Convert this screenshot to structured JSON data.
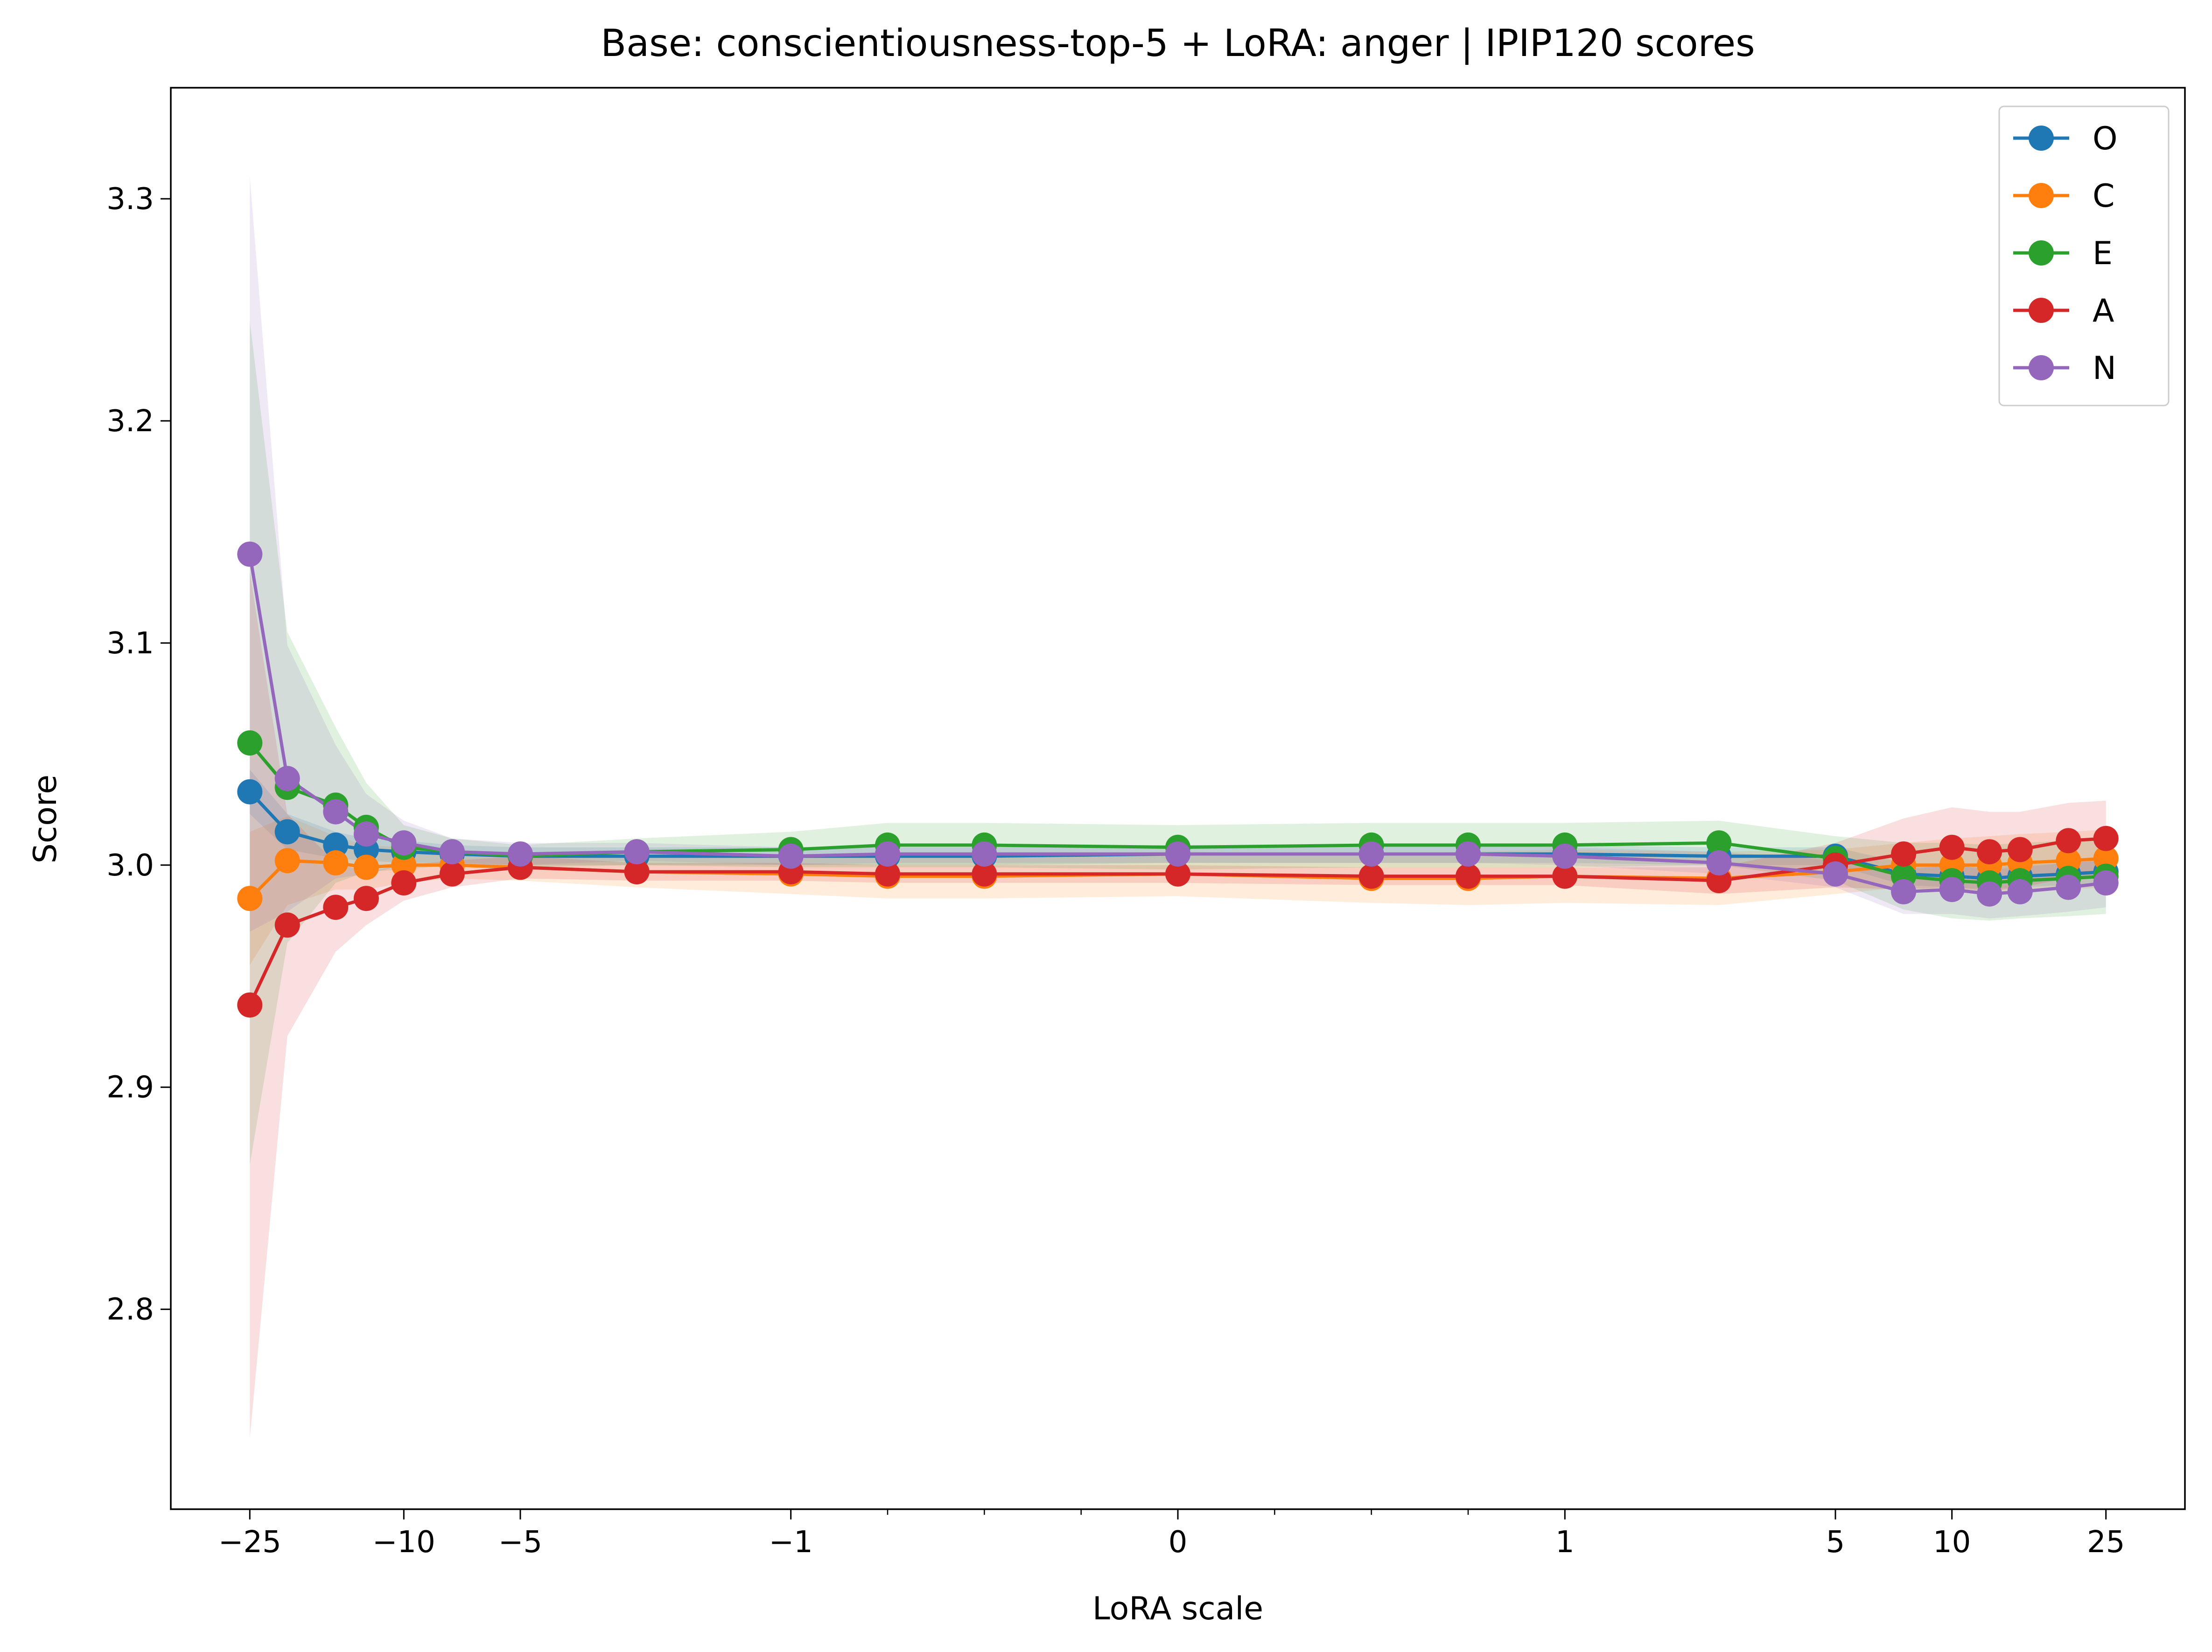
{
  "chart_data": {
    "type": "line",
    "title": "Base: conscientiousness-top-5 + LoRA: anger | IPIP120 scores",
    "xlabel": "LoRA scale",
    "ylabel": "Score",
    "x_scale": "symlog",
    "x_linthresh": 1,
    "xlim": [
      -40,
      40
    ],
    "ylim": [
      2.71,
      3.35
    ],
    "xticks": [
      {
        "value": -25,
        "label": "−25"
      },
      {
        "value": -10,
        "label": "−10"
      },
      {
        "value": -5,
        "label": "−5"
      },
      {
        "value": -1,
        "label": "−1"
      },
      {
        "value": 0,
        "label": "0"
      },
      {
        "value": 1,
        "label": "1"
      },
      {
        "value": 5,
        "label": "5"
      },
      {
        "value": 10,
        "label": "10"
      },
      {
        "value": 25,
        "label": "25"
      }
    ],
    "yticks": [
      {
        "value": 2.8,
        "label": "2.8"
      },
      {
        "value": 2.9,
        "label": "2.9"
      },
      {
        "value": 3.0,
        "label": "3.0"
      },
      {
        "value": 3.1,
        "label": "3.1"
      },
      {
        "value": 3.2,
        "label": "3.2"
      },
      {
        "value": 3.3,
        "label": "3.3"
      }
    ],
    "grid": false,
    "legend_position": "top-right",
    "x": [
      -25,
      -20,
      -15,
      -12.5,
      -10,
      -7.5,
      -5,
      -2.5,
      -1,
      -0.75,
      -0.5,
      0,
      0.5,
      0.75,
      1,
      2.5,
      5,
      7.5,
      10,
      12.5,
      15,
      20,
      25
    ],
    "series": [
      {
        "name": "O",
        "color": "#1f77b4",
        "values": [
          3.033,
          3.015,
          3.009,
          3.007,
          3.006,
          3.005,
          3.004,
          3.004,
          3.004,
          3.004,
          3.004,
          3.005,
          3.005,
          3.005,
          3.005,
          3.004,
          3.004,
          2.996,
          2.995,
          2.994,
          2.995,
          2.996,
          2.997
        ],
        "band": [
          0.01,
          0.008,
          0.006,
          0.005,
          0.005,
          0.004,
          0.004,
          0.004,
          0.004,
          0.004,
          0.004,
          0.004,
          0.004,
          0.004,
          0.004,
          0.004,
          0.004,
          0.005,
          0.005,
          0.005,
          0.005,
          0.005,
          0.005
        ]
      },
      {
        "name": "C",
        "color": "#ff7f0e",
        "values": [
          2.985,
          3.002,
          3.001,
          2.999,
          3.0,
          3.0,
          2.999,
          2.997,
          2.996,
          2.995,
          2.995,
          2.996,
          2.994,
          2.994,
          2.995,
          2.994,
          2.997,
          3.0,
          3.0,
          3.0,
          3.001,
          3.002,
          3.003
        ],
        "band": [
          0.03,
          0.02,
          0.012,
          0.01,
          0.008,
          0.006,
          0.006,
          0.007,
          0.009,
          0.01,
          0.01,
          0.01,
          0.011,
          0.012,
          0.012,
          0.012,
          0.01,
          0.01,
          0.012,
          0.013,
          0.013,
          0.013,
          0.013
        ]
      },
      {
        "name": "E",
        "color": "#2ca02c",
        "values": [
          3.055,
          3.035,
          3.027,
          3.017,
          3.008,
          3.006,
          3.004,
          3.006,
          3.007,
          3.009,
          3.009,
          3.008,
          3.009,
          3.009,
          3.009,
          3.01,
          3.003,
          2.995,
          2.993,
          2.992,
          2.993,
          2.994,
          2.995
        ],
        "band": [
          0.19,
          0.07,
          0.035,
          0.02,
          0.01,
          0.006,
          0.005,
          0.006,
          0.008,
          0.01,
          0.01,
          0.01,
          0.01,
          0.01,
          0.01,
          0.01,
          0.01,
          0.015,
          0.017,
          0.017,
          0.017,
          0.017,
          0.017
        ]
      },
      {
        "name": "A",
        "color": "#d62728",
        "values": [
          2.937,
          2.973,
          2.981,
          2.985,
          2.992,
          2.996,
          2.999,
          2.997,
          2.997,
          2.996,
          2.996,
          2.996,
          2.995,
          2.995,
          2.995,
          2.993,
          3.0,
          3.005,
          3.008,
          3.006,
          3.007,
          3.011,
          3.012
        ],
        "band": [
          0.195,
          0.05,
          0.02,
          0.012,
          0.008,
          0.006,
          0.005,
          0.004,
          0.004,
          0.004,
          0.004,
          0.004,
          0.004,
          0.004,
          0.004,
          0.006,
          0.01,
          0.016,
          0.018,
          0.018,
          0.017,
          0.017,
          0.017
        ]
      },
      {
        "name": "N",
        "color": "#9467bd",
        "values": [
          3.14,
          3.039,
          3.024,
          3.014,
          3.01,
          3.006,
          3.005,
          3.006,
          3.004,
          3.005,
          3.005,
          3.005,
          3.005,
          3.005,
          3.004,
          3.001,
          2.996,
          2.988,
          2.989,
          2.987,
          2.988,
          2.99,
          2.992
        ],
        "band": [
          0.17,
          0.06,
          0.03,
          0.018,
          0.01,
          0.006,
          0.005,
          0.004,
          0.004,
          0.004,
          0.004,
          0.004,
          0.004,
          0.004,
          0.004,
          0.005,
          0.006,
          0.01,
          0.011,
          0.011,
          0.011,
          0.011,
          0.011
        ]
      }
    ]
  }
}
